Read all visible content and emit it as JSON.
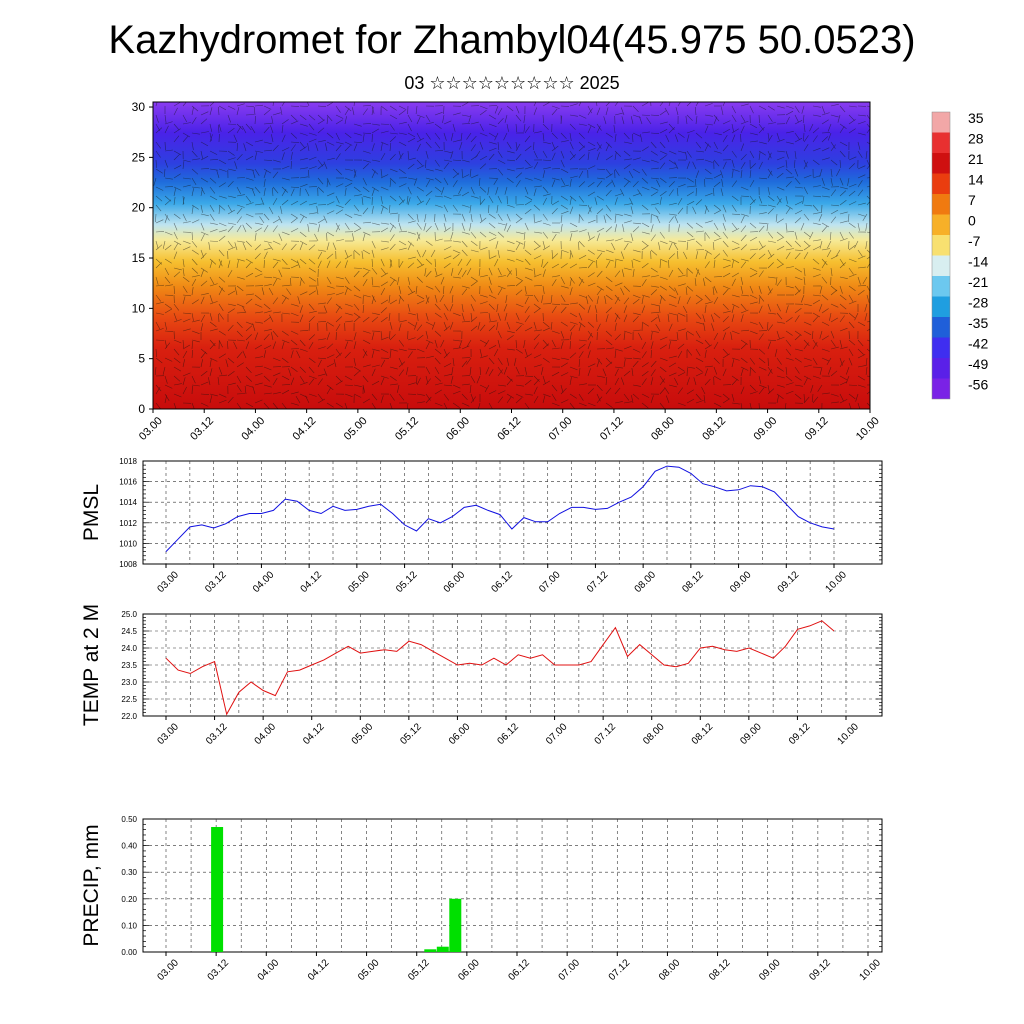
{
  "title": "Kazhydromet for Zhambyl04(45.975 50.0523)",
  "subtitle": "03 ☆☆☆☆☆☆☆☆☆ 2025",
  "time_ticks": [
    "03.00",
    "03.12",
    "04.00",
    "04.12",
    "05.00",
    "05.12",
    "06.00",
    "06.12",
    "07.00",
    "07.12",
    "08.00",
    "08.12",
    "09.00",
    "09.12",
    "10.00"
  ],
  "colorbar": {
    "labels": [
      "35",
      "28",
      "21",
      "14",
      "7",
      "0",
      "-7",
      "-14",
      "-21",
      "-28",
      "-35",
      "-42",
      "-49",
      "-56"
    ],
    "colors": [
      "#f2a7a7",
      "#e83030",
      "#cf1010",
      "#ea3d0f",
      "#f07a10",
      "#f7b028",
      "#f8e070",
      "#d8eef0",
      "#6cc8ef",
      "#1f9ee0",
      "#1f5fd9",
      "#3f2ef0",
      "#5a20e8",
      "#7a22e6"
    ]
  },
  "chart_data": [
    {
      "type": "heatmap",
      "title": "",
      "xlabel": "",
      "ylabel": "",
      "x_ticks": [
        "03.00",
        "03.12",
        "04.00",
        "04.12",
        "05.00",
        "05.12",
        "06.00",
        "06.12",
        "07.00",
        "07.12",
        "08.00",
        "08.12",
        "09.00",
        "09.12",
        "10.00"
      ],
      "y_ticks": [
        "0",
        "5",
        "10",
        "15",
        "20",
        "25",
        "30"
      ],
      "ylim": [
        0,
        30.5
      ],
      "color_levels": [
        35,
        28,
        21,
        14,
        7,
        0,
        -7,
        -14,
        -21,
        -28,
        -35,
        -42,
        -49,
        -56
      ],
      "overlay": "wind barbs"
    },
    {
      "type": "line",
      "ylabel": "PMSL",
      "ylim": [
        1008,
        1018
      ],
      "y_ticks": [
        "1008",
        "1010",
        "1012",
        "1014",
        "1016",
        "1018"
      ],
      "x_ticks": [
        "03.00",
        "03.12",
        "04.00",
        "04.12",
        "05.00",
        "05.12",
        "06.00",
        "06.12",
        "07.00",
        "07.12",
        "08.00",
        "08.12",
        "09.00",
        "09.12",
        "10.00"
      ],
      "color": "#1010e0",
      "values": [
        1009.2,
        1010.4,
        1011.6,
        1011.8,
        1011.5,
        1011.9,
        1012.6,
        1012.9,
        1012.9,
        1013.2,
        1014.3,
        1014.1,
        1013.2,
        1012.9,
        1013.6,
        1013.2,
        1013.3,
        1013.6,
        1013.8,
        1012.9,
        1011.8,
        1011.2,
        1012.4,
        1012.0,
        1012.6,
        1013.5,
        1013.7,
        1013.2,
        1012.8,
        1011.4,
        1012.5,
        1012.1,
        1012.1,
        1012.9,
        1013.5,
        1013.5,
        1013.3,
        1013.4,
        1014.0,
        1014.5,
        1015.5,
        1017.0,
        1017.5,
        1017.4,
        1016.8,
        1015.8,
        1015.5,
        1015.1,
        1015.2,
        1015.6,
        1015.5,
        1015.0,
        1013.8,
        1012.6,
        1012.0,
        1011.6,
        1011.4
      ]
    },
    {
      "type": "line",
      "ylabel": "TEMP at 2 M",
      "ylim": [
        22.0,
        25.0
      ],
      "y_ticks": [
        "22.0",
        "22.5",
        "23.0",
        "23.5",
        "24.0",
        "24.5",
        "25.0"
      ],
      "x_ticks": [
        "03.00",
        "03.12",
        "04.00",
        "04.12",
        "05.00",
        "05.12",
        "06.00",
        "06.12",
        "07.00",
        "07.12",
        "08.00",
        "08.12",
        "09.00",
        "09.12",
        "10.00"
      ],
      "color": "#e01010",
      "values": [
        23.7,
        23.35,
        23.25,
        23.45,
        23.6,
        22.05,
        22.7,
        23.0,
        22.75,
        22.6,
        23.3,
        23.35,
        23.5,
        23.65,
        23.85,
        24.05,
        23.85,
        23.9,
        23.95,
        23.9,
        24.2,
        24.1,
        23.9,
        23.7,
        23.5,
        23.55,
        23.5,
        23.7,
        23.5,
        23.8,
        23.7,
        23.8,
        23.5,
        23.5,
        23.5,
        23.6,
        24.1,
        24.6,
        23.75,
        24.1,
        23.8,
        23.5,
        23.45,
        23.55,
        24.0,
        24.05,
        23.95,
        23.9,
        24.0,
        23.85,
        23.7,
        24.05,
        24.55,
        24.65,
        24.8,
        24.5
      ]
    },
    {
      "type": "bar",
      "ylabel": "PRECIP, mm",
      "ylim": [
        0.0,
        0.5
      ],
      "y_ticks": [
        "0.00",
        "0.10",
        "0.20",
        "0.30",
        "0.40",
        "0.50"
      ],
      "x_ticks": [
        "03.00",
        "03.12",
        "04.00",
        "04.12",
        "05.00",
        "05.12",
        "06.00",
        "06.12",
        "07.00",
        "07.12",
        "08.00",
        "08.12",
        "09.00",
        "09.12",
        "10.00"
      ],
      "color": "#00e000",
      "bars": [
        {
          "time": "03.12",
          "value": 0.47
        },
        {
          "time": "05.15",
          "value": 0.01
        },
        {
          "time": "05.18",
          "value": 0.02
        },
        {
          "time": "05.21",
          "value": 0.2
        }
      ]
    }
  ]
}
